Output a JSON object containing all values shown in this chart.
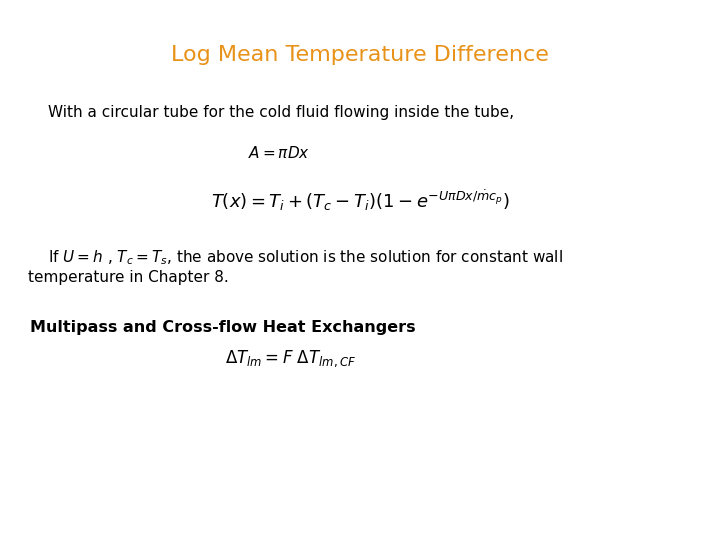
{
  "title": "Log Mean Temperature Difference",
  "title_color": "#E8921A",
  "title_fontsize": 16,
  "bg_color": "#ffffff",
  "line1": "With a circular tube for the cold fluid flowing inside the tube,",
  "line1_fontsize": 11,
  "line2": "$A =\\pi Dx$",
  "line2_fontsize": 11,
  "formula": "$T(x) = T_i + (T_c - T_i)(1 - e^{-U\\pi Dx/\\dot{m}c_p})$",
  "formula_fontsize": 13,
  "line3": "If $U = h$ , $T_c = T_s$, the above solution is the solution for constant wall",
  "line3_fontsize": 11,
  "line4": "temperature in Chapter 8.",
  "line4_fontsize": 11,
  "line5": "Multipass and Cross-flow Heat Exchangers",
  "line5_fontsize": 11.5,
  "line6": "$\\Delta T_{lm} = F\\ \\Delta T_{lm,CF}$",
  "line6_fontsize": 12
}
